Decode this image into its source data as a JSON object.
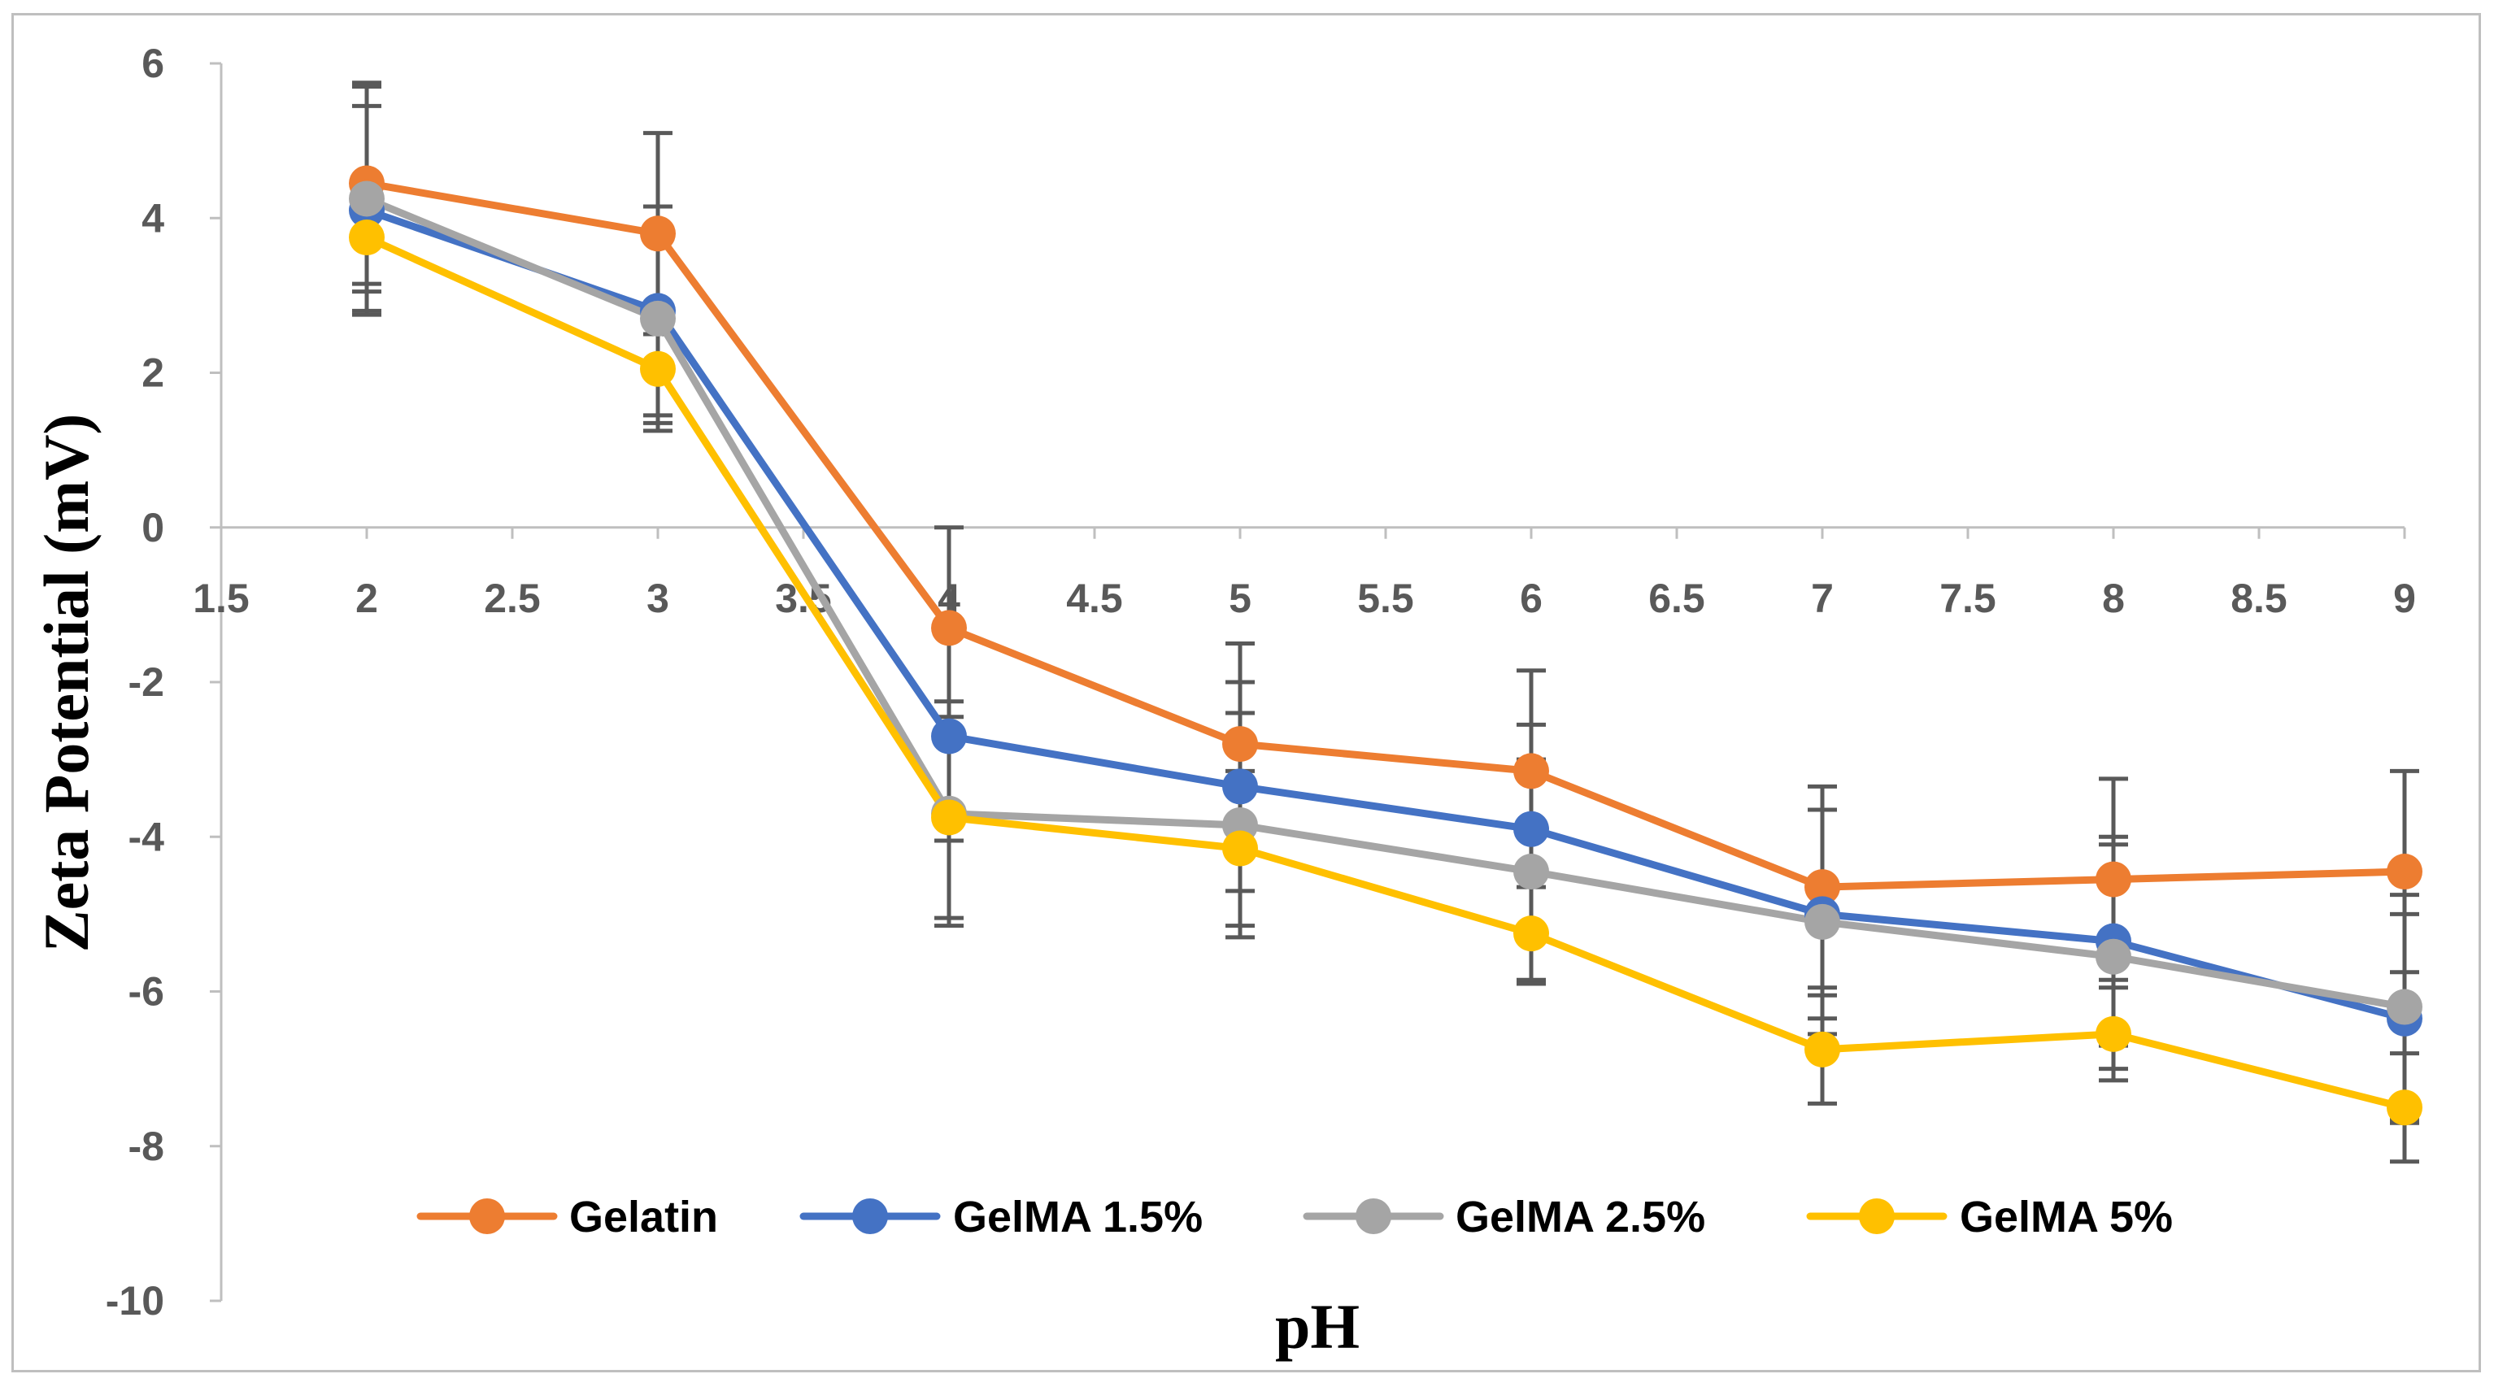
{
  "chart_data": {
    "type": "line",
    "title": "",
    "xlabel": "pH",
    "ylabel": "Zeta Potential (mV)",
    "xlim": [
      1.5,
      9
    ],
    "ylim": [
      -10,
      6
    ],
    "xticks": [
      1.5,
      2,
      2.5,
      3,
      3.5,
      4,
      4.5,
      5,
      5.5,
      6,
      6.5,
      7,
      7.5,
      8,
      8.5,
      9
    ],
    "yticks": [
      -10,
      -8,
      -6,
      -4,
      -2,
      0,
      2,
      4,
      6
    ],
    "xtick_labels": [
      "1.5",
      "2",
      "2.5",
      "3",
      "3.5",
      "4",
      "4.5",
      "5",
      "5.5",
      "6",
      "6.5",
      "7",
      "7.5",
      "8",
      "8.5",
      "9"
    ],
    "ytick_labels": [
      "-10",
      "-8",
      "-6",
      "-4",
      "-2",
      "0",
      "2",
      "4",
      "6"
    ],
    "grid": false,
    "legend_position": "bottom",
    "x": [
      2,
      3,
      4,
      5,
      6,
      7,
      8,
      9
    ],
    "series": [
      {
        "name": "Gelatin",
        "color": "#ED7D31",
        "values": [
          4.45,
          3.8,
          -1.3,
          -2.8,
          -3.15,
          -4.65,
          -4.55,
          -4.45
        ],
        "errors": [
          1.3,
          1.3,
          1.3,
          1.3,
          1.3,
          1.3,
          1.3,
          1.3
        ]
      },
      {
        "name": "GelMA 1.5%",
        "color": "#4472C4",
        "values": [
          4.1,
          2.8,
          -2.7,
          -3.35,
          -3.9,
          -5.0,
          -5.35,
          -6.35
        ],
        "errors": [
          1.35,
          1.35,
          1.35,
          1.35,
          1.35,
          1.35,
          1.35,
          1.35
        ]
      },
      {
        "name": "GelMA 2.5%",
        "color": "#A5A5A5",
        "values": [
          4.25,
          2.7,
          -3.7,
          -3.85,
          -4.45,
          -5.1,
          -5.55,
          -6.2
        ],
        "errors": [
          1.45,
          1.45,
          1.45,
          1.45,
          1.45,
          1.45,
          1.45,
          1.45
        ]
      },
      {
        "name": "GelMA 5%",
        "color": "#FFC000",
        "values": [
          3.75,
          2.05,
          -3.75,
          -4.15,
          -5.25,
          -6.75,
          -6.55,
          -7.5
        ],
        "errors": [
          0.7,
          0.7,
          1.3,
          1.0,
          0.6,
          0.7,
          0.6,
          0.7
        ]
      }
    ]
  }
}
